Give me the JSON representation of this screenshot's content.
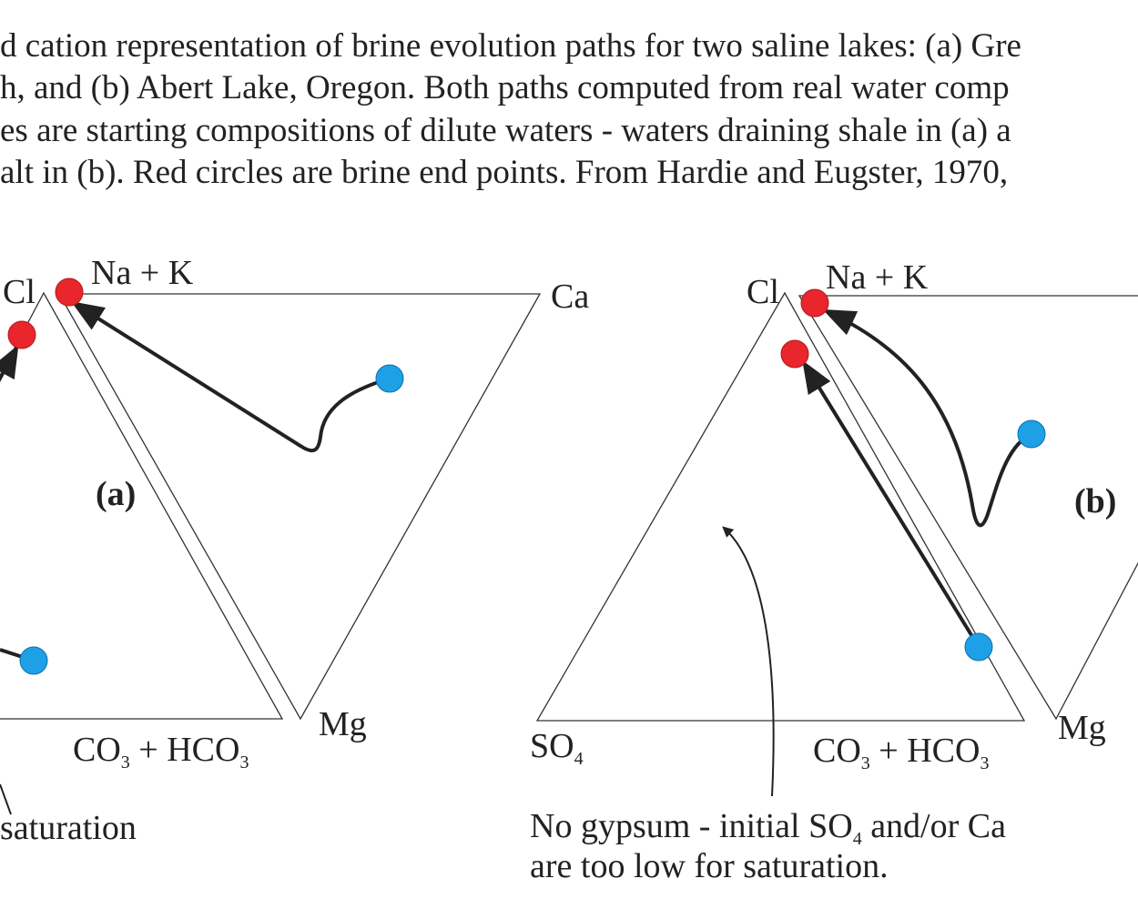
{
  "caption": {
    "lines": [
      "d cation representation of brine evolution paths for two saline lakes: (a) Gre",
      "h,  and (b) Abert Lake, Oregon. Both paths computed from real water comp",
      "es are starting compositions of dilute waters - waters draining shale in (a) a",
      "alt in (b). Red circles are brine end points. From Hardie and Eugster, 1970,"
    ]
  },
  "panel_a": {
    "cl": "Cl",
    "na_k": "Na + K",
    "ca": "Ca",
    "mg": "Mg",
    "co3_hco3": [
      "CO",
      "3",
      " + HCO",
      "3"
    ],
    "label": "(a)",
    "note": "saturation"
  },
  "panel_b": {
    "cl": "Cl",
    "na_k": "Na + K",
    "mg": "Mg",
    "so4": [
      "SO",
      "4"
    ],
    "co3_hco3": [
      "CO",
      "3",
      " + HCO",
      "3"
    ],
    "label": "(b)",
    "note": {
      "line1": [
        "No gypsum - initial SO",
        "4",
        " and/or Ca"
      ],
      "line2": "are too low for saturation."
    }
  }
}
